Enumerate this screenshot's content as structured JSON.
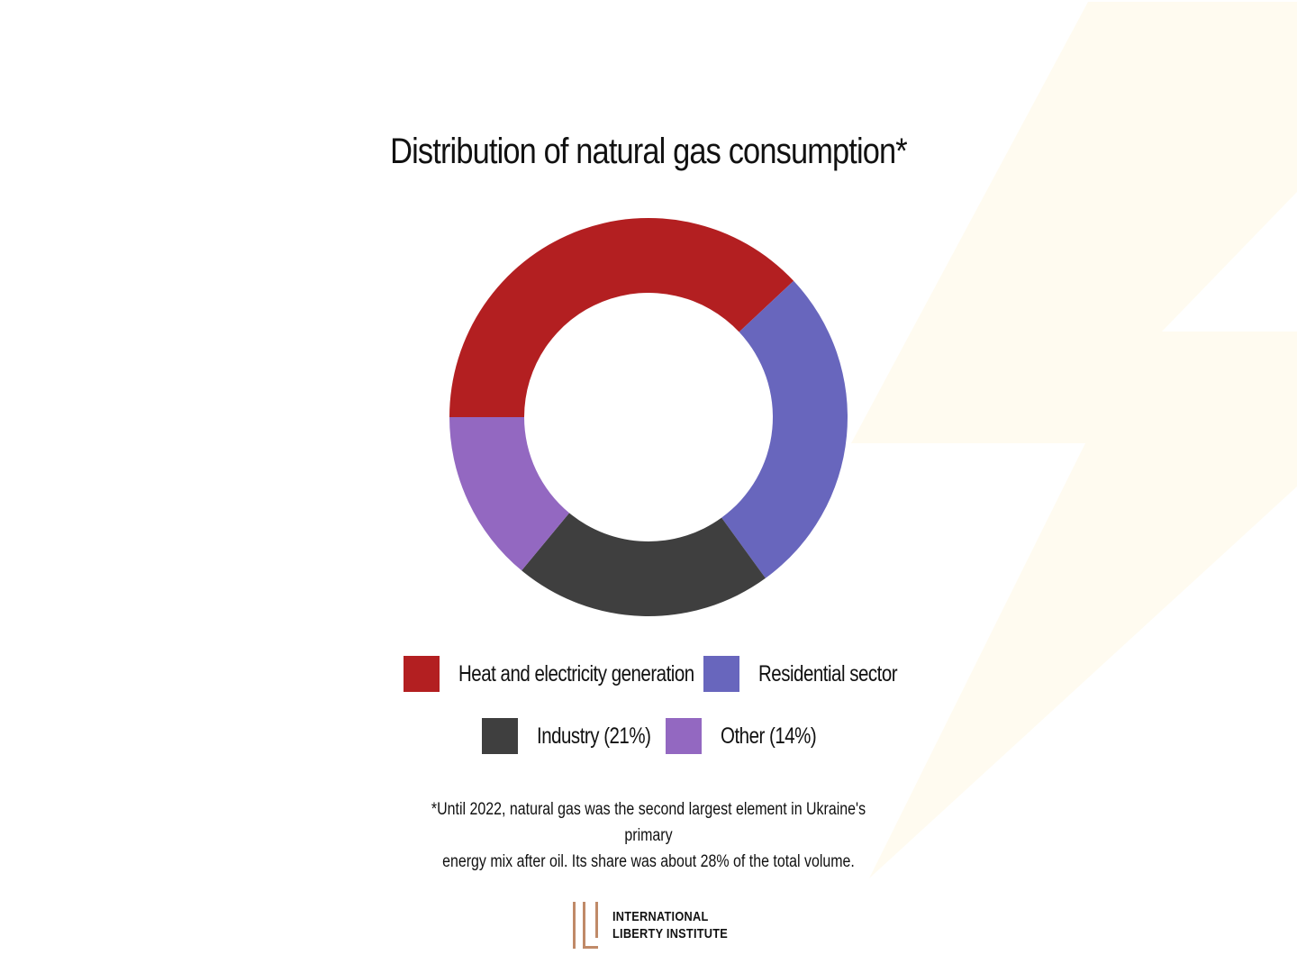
{
  "chart_data": {
    "type": "pie",
    "title": "Distribution of natural gas consumption*",
    "series": [
      {
        "name": "Heat and electricity generation",
        "value": 38,
        "color": "#b31f21"
      },
      {
        "name": "Residential sector",
        "value": 27,
        "color": "#6866bd"
      },
      {
        "name": "Industry (21%)",
        "value": 21,
        "color": "#3f3f3f"
      },
      {
        "name": "Other (14%)",
        "value": 14,
        "color": "#9368c1"
      }
    ],
    "legend_position": "bottom",
    "footnote_line1": "*Until 2022, natural gas was the second largest element in Ukraine's primary",
    "footnote_line2": "energy mix after oil. Its share was about 28% of the total volume."
  },
  "logo": {
    "line1": "International",
    "line2": "Liberty Institute",
    "color": "#c08a68"
  },
  "background_accent": "#fffbf0"
}
